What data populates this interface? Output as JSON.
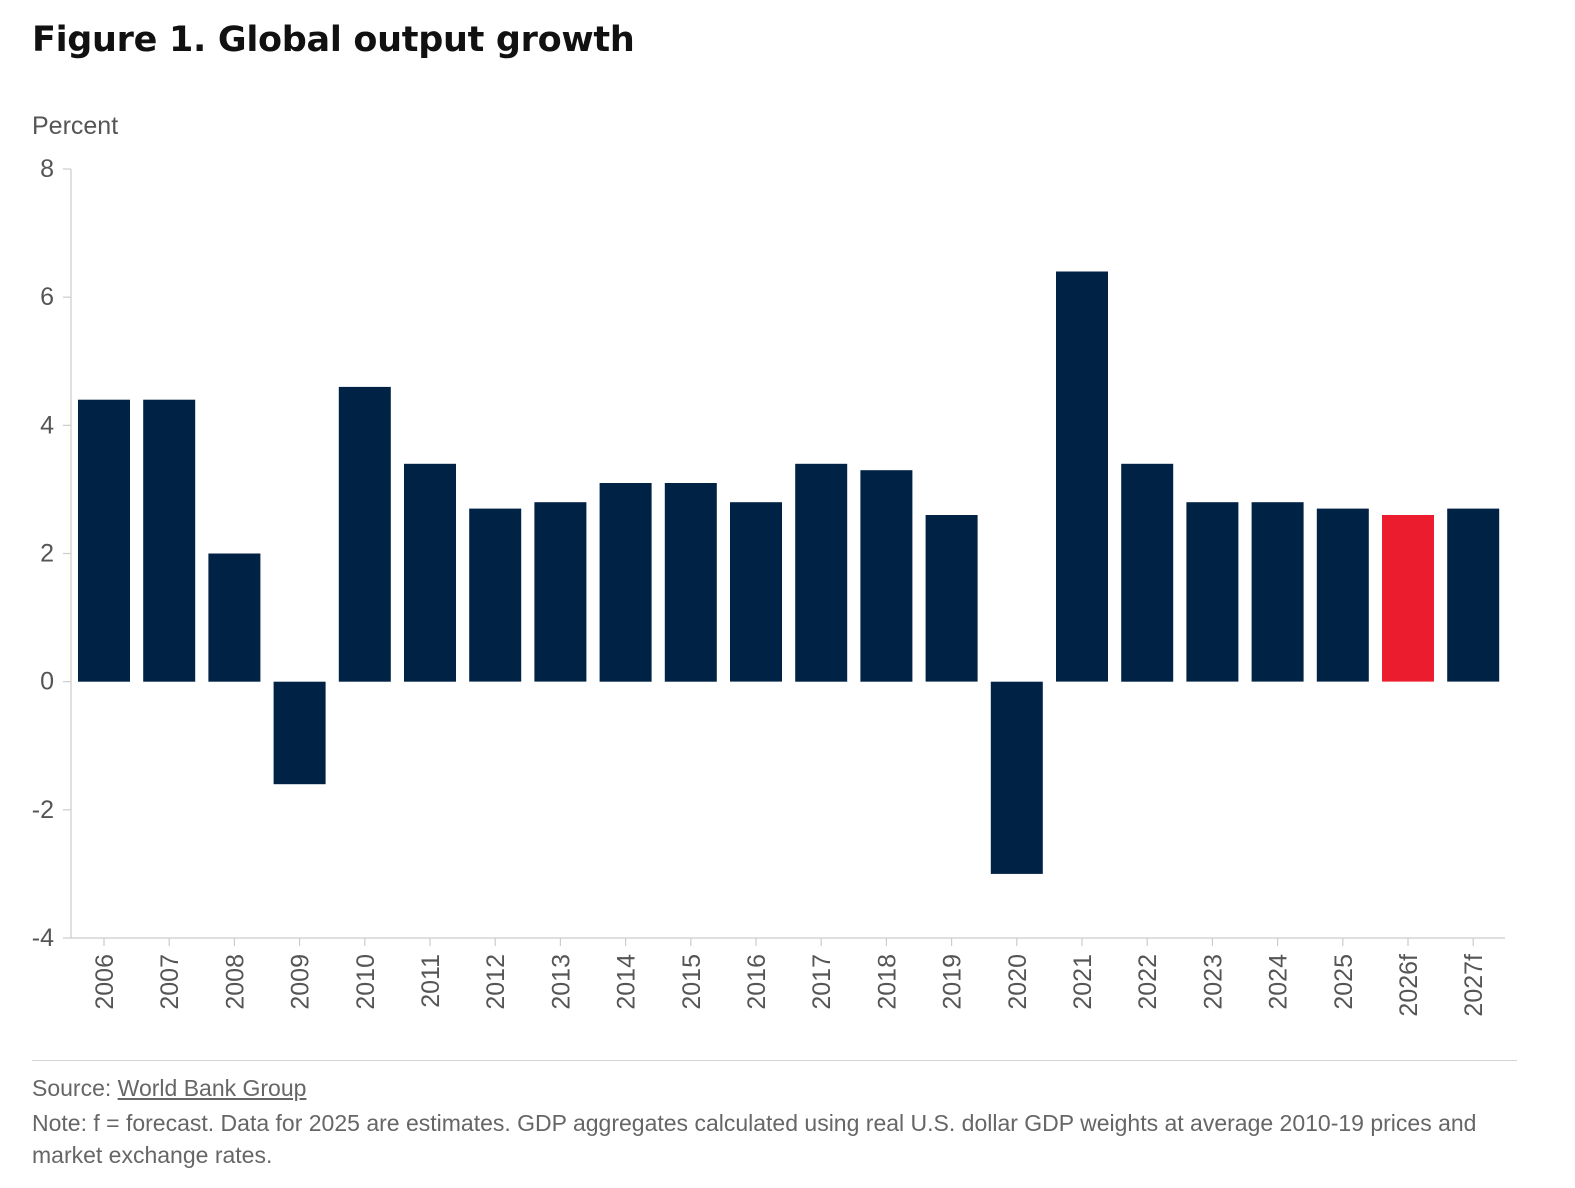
{
  "figure": {
    "title": "Figure 1. Global output growth",
    "source_prefix": "Source: ",
    "source_link": "World Bank Group",
    "note": "Note: f = forecast. Data for 2025 are estimates. GDP aggregates calculated using real U.S. dollar GDP weights at average 2010-19 prices and market exchange rates."
  },
  "chart_data": {
    "type": "bar",
    "title": "Figure 1. Global output growth",
    "xlabel": "",
    "ylabel": "Percent",
    "ylim": [
      -4,
      8
    ],
    "yticks": [
      -4,
      -2,
      0,
      2,
      4,
      6,
      8
    ],
    "grid": false,
    "legend": "none",
    "categories": [
      "2006",
      "2007",
      "2008",
      "2009",
      "2010",
      "2011",
      "2012",
      "2013",
      "2014",
      "2015",
      "2016",
      "2017",
      "2018",
      "2019",
      "2020",
      "2021",
      "2022",
      "2023",
      "2024",
      "2025",
      "2026f",
      "2027f"
    ],
    "values": [
      4.4,
      4.4,
      2.0,
      -1.6,
      4.6,
      3.4,
      2.7,
      2.8,
      3.1,
      3.1,
      2.8,
      3.4,
      3.3,
      2.6,
      -3.0,
      6.4,
      3.4,
      2.8,
      2.8,
      2.7,
      2.6,
      2.7
    ],
    "highlight_category": "2026f",
    "colors": {
      "bar": "#002244",
      "highlight": "#EB1C2D",
      "axis": "#cccccc",
      "tick_text": "#555555"
    }
  }
}
